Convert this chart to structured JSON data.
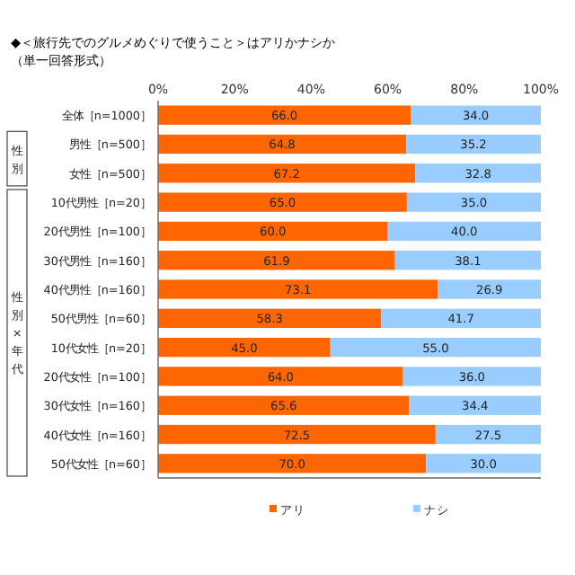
{
  "chart_data": {
    "type": "bar",
    "orientation": "horizontal",
    "stacked": true,
    "title": "◆＜旅行先でのグルメめぐりで使うこと＞はアリかナシか",
    "subtitle": "（単一回答形式）",
    "categories": [
      "全体［n=1000］",
      "男性［n=500］",
      "女性［n=500］",
      "10代男性［n=20］",
      "20代男性［n=100］",
      "30代男性［n=160］",
      "40代男性［n=160］",
      "50代男性［n=60］",
      "10代女性［n=20］",
      "20代女性［n=100］",
      "30代女性［n=160］",
      "40代女性［n=160］",
      "50代女性［n=60］"
    ],
    "series": [
      {
        "name": "アリ",
        "color": "#ff6600",
        "values": [
          66.0,
          64.8,
          67.2,
          65.0,
          60.0,
          61.9,
          73.1,
          58.3,
          45.0,
          64.0,
          65.6,
          72.5,
          70.0
        ],
        "value_labels": [
          "66.0",
          "64.8",
          "67.2",
          "65.0",
          "60.0",
          "61.9",
          "73.1",
          "58.3",
          "45.0",
          "64.0",
          "65.6",
          "72.5",
          "70.0"
        ]
      },
      {
        "name": "ナシ",
        "color": "#99ccff",
        "values": [
          34.0,
          35.2,
          32.8,
          35.0,
          40.0,
          38.1,
          26.9,
          41.7,
          55.0,
          36.0,
          34.4,
          27.5,
          30.0
        ],
        "value_labels": [
          "34.0",
          "35.2",
          "32.8",
          "35.0",
          "40.0",
          "38.1",
          "26.9",
          "41.7",
          "55.0",
          "36.0",
          "34.4",
          "27.5",
          "30.0"
        ]
      }
    ],
    "xlim": [
      0,
      100
    ],
    "xticks": [
      {
        "value": 0,
        "label": "0%"
      },
      {
        "value": 20,
        "label": "20%"
      },
      {
        "value": 40,
        "label": "40%"
      },
      {
        "value": 60,
        "label": "60%"
      },
      {
        "value": 80,
        "label": "80%"
      },
      {
        "value": 100,
        "label": "100%"
      }
    ],
    "annotations": [
      "性別",
      "性別×年代"
    ],
    "legend": "bottom",
    "grid": false
  }
}
